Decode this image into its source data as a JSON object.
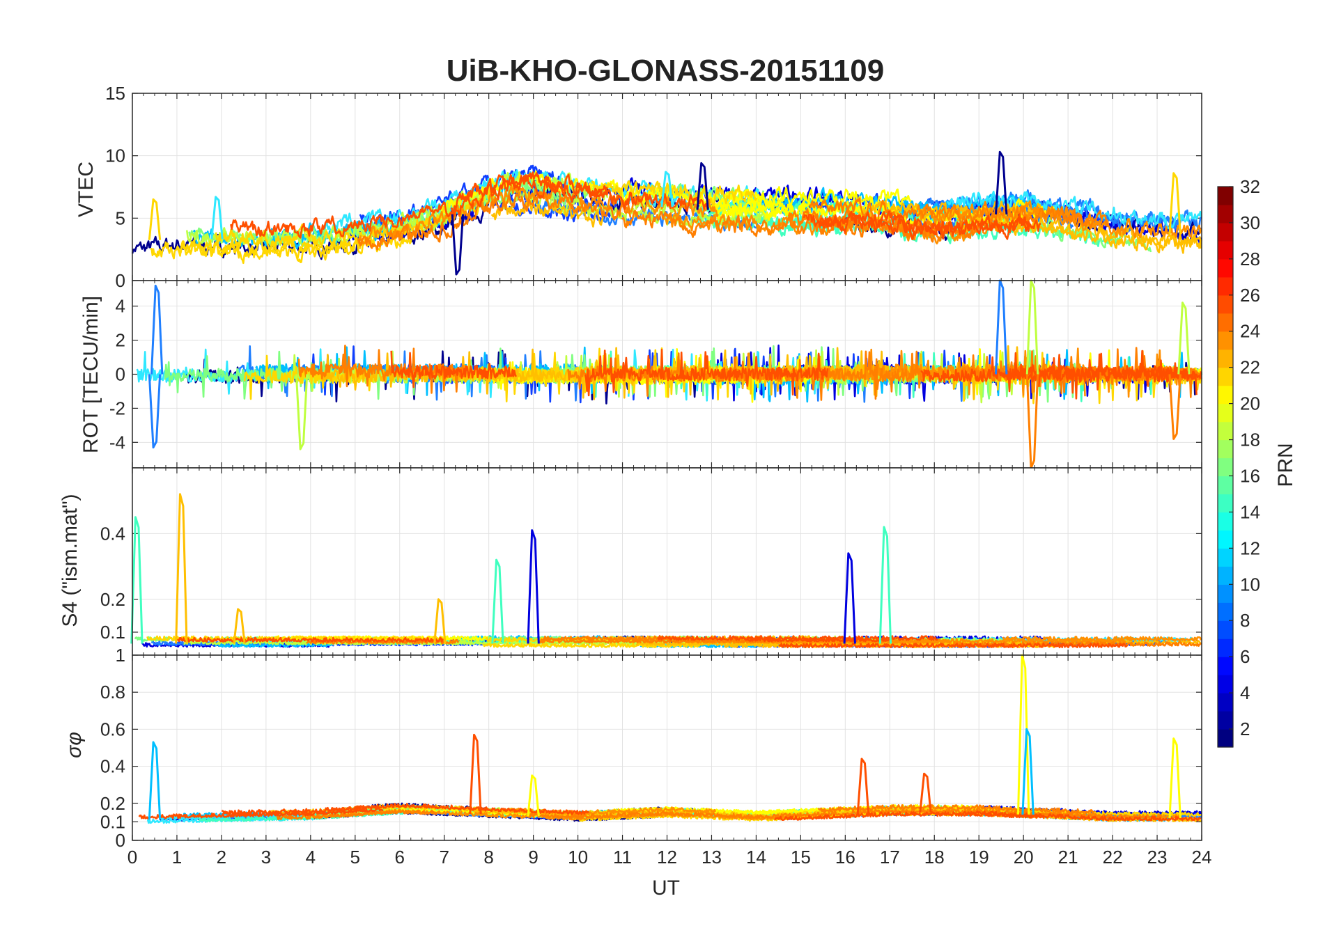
{
  "chart_data": {
    "type": "line",
    "title": "UiB-KHO-GLONASS-20151109",
    "xlabel": "UT",
    "xlim": [
      0,
      24
    ],
    "x_ticks": [
      "0",
      "1",
      "2",
      "3",
      "4",
      "5",
      "6",
      "7",
      "8",
      "9",
      "10",
      "11",
      "12",
      "13",
      "14",
      "15",
      "16",
      "17",
      "18",
      "19",
      "20",
      "21",
      "22",
      "23",
      "24"
    ],
    "grid": true,
    "colorbar": {
      "label": "PRN",
      "range": [
        1,
        32
      ],
      "colormap": "jet",
      "ticks": [
        "2",
        "4",
        "6",
        "8",
        "10",
        "12",
        "14",
        "16",
        "18",
        "20",
        "22",
        "24",
        "26",
        "28",
        "30",
        "32"
      ],
      "placement": "right"
    },
    "series_colors": [
      "#00008f",
      "#0000df",
      "#0f3fff",
      "#1f7fff",
      "#00bfff",
      "#2fe8ff",
      "#3fffbf",
      "#7fff7f",
      "#bfff3f",
      "#ffff00",
      "#ffd700",
      "#ffbf00",
      "#ff8f00",
      "#ff7f00",
      "#ff4f00"
    ],
    "panels": [
      {
        "ylabel": "VTEC",
        "ylim": [
          0,
          15
        ],
        "y_ticks": [
          "0",
          "5",
          "10",
          "15"
        ],
        "profile": {
          "x": [
            0,
            1,
            2,
            3,
            4,
            5,
            6,
            7,
            8,
            9,
            10,
            11,
            12,
            13,
            14,
            15,
            16,
            17,
            18,
            19,
            20,
            21,
            22,
            23,
            24
          ],
          "y": [
            3.0,
            3.5,
            3.3,
            3.2,
            3.3,
            3.6,
            4.0,
            4.8,
            6.5,
            7.3,
            6.5,
            6.2,
            5.9,
            5.6,
            5.6,
            5.6,
            5.6,
            5.4,
            5.0,
            5.2,
            5.4,
            4.8,
            4.2,
            3.8,
            3.6
          ]
        },
        "peaks": [
          {
            "x": 19.5,
            "y": 10.3
          },
          {
            "x": 12.0,
            "y": 8.7
          },
          {
            "x": 23.4,
            "y": 8.6
          },
          {
            "x": 12.8,
            "y": 9.4
          },
          {
            "x": 1.9,
            "y": 6.7
          },
          {
            "x": 0.5,
            "y": 6.5
          },
          {
            "x": 7.3,
            "y": 0.5
          }
        ]
      },
      {
        "ylabel": "ROT [TECU/min]",
        "ylim": [
          -5.5,
          5.5
        ],
        "y_ticks": [
          "-4",
          "-2",
          "0",
          "2",
          "4"
        ],
        "profile": {
          "x": [
            0,
            24
          ],
          "y": [
            0,
            0
          ]
        },
        "peaks": [
          {
            "x": 19.5,
            "y": 5.5
          },
          {
            "x": 20.2,
            "y": 5.5
          },
          {
            "x": 20.2,
            "y": -5.5
          },
          {
            "x": 0.5,
            "y": -4.3
          },
          {
            "x": 3.8,
            "y": -4.4
          },
          {
            "x": 23.4,
            "y": -3.8
          },
          {
            "x": 0.55,
            "y": 5.2
          },
          {
            "x": 23.6,
            "y": 4.2
          }
        ]
      },
      {
        "ylabel": "S4 (\"ism.mat\")",
        "ylim": [
          0.03,
          0.6
        ],
        "y_ticks": [
          "0.1",
          "0.2",
          "0.4"
        ],
        "profile": {
          "x": [
            0,
            24
          ],
          "y": [
            0.065,
            0.065
          ]
        },
        "peaks": [
          {
            "x": 0.1,
            "y": 0.45
          },
          {
            "x": 1.1,
            "y": 0.52
          },
          {
            "x": 9.0,
            "y": 0.41
          },
          {
            "x": 8.2,
            "y": 0.32
          },
          {
            "x": 6.9,
            "y": 0.2
          },
          {
            "x": 16.1,
            "y": 0.34
          },
          {
            "x": 16.9,
            "y": 0.42
          },
          {
            "x": 2.4,
            "y": 0.17
          }
        ]
      },
      {
        "ylabel": "σφ",
        "ylim": [
          0,
          1
        ],
        "y_ticks": [
          "0",
          "0.1",
          "0.2",
          "0.4",
          "0.6",
          "0.8",
          "1"
        ],
        "profile": {
          "x": [
            0,
            4,
            6,
            8,
            10,
            12,
            14,
            16,
            17,
            19,
            20,
            22,
            24
          ],
          "y": [
            0.11,
            0.13,
            0.16,
            0.14,
            0.12,
            0.14,
            0.12,
            0.14,
            0.15,
            0.15,
            0.14,
            0.12,
            0.12
          ]
        },
        "peaks": [
          {
            "x": 20.0,
            "y": 1.0
          },
          {
            "x": 7.7,
            "y": 0.57
          },
          {
            "x": 0.5,
            "y": 0.53
          },
          {
            "x": 23.4,
            "y": 0.55
          },
          {
            "x": 16.4,
            "y": 0.44
          },
          {
            "x": 20.1,
            "y": 0.6
          },
          {
            "x": 9.0,
            "y": 0.35
          },
          {
            "x": 17.8,
            "y": 0.36
          }
        ]
      }
    ]
  }
}
